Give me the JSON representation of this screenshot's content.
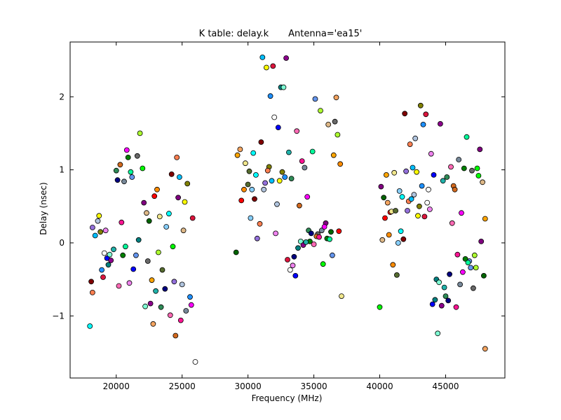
{
  "chart_data": {
    "type": "scatter",
    "title": "K table: delay.k",
    "subtitle": "Antenna='ea15'",
    "xlabel": "Frequency (MHz)",
    "ylabel": "Delay (nsec)",
    "xlim": [
      16500,
      49500
    ],
    "ylim": [
      -1.85,
      2.75
    ],
    "xticks": [
      20000,
      25000,
      30000,
      35000,
      40000,
      45000
    ],
    "yticks": [
      -1,
      0,
      1,
      2
    ],
    "ytick_labels": [
      "−1",
      "0",
      "1",
      "2"
    ],
    "grid": false,
    "legend": "none",
    "colors": [
      "#00ffff",
      "#ff00ff",
      "#ffff00",
      "#00ff00",
      "#0000ff",
      "#ff0000",
      "#000080",
      "#800000",
      "#008000",
      "#808000",
      "#800080",
      "#008080",
      "#ff8c00",
      "#ff69b4",
      "#9370db",
      "#00fa9a",
      "#1e90ff",
      "#deb887",
      "#7fffd4",
      "#f0e68c",
      "#d2691e",
      "#ff7f50",
      "#6495ed",
      "#dc143c",
      "#006400",
      "#8b008b",
      "#556b2f",
      "#ff1493",
      "#00bfff",
      "#696969",
      "#ffffff",
      "#ffa500",
      "#20b2aa",
      "#87cefa",
      "#778899",
      "#b0c4de",
      "#adff2f",
      "#ee82ee",
      "#f4a460",
      "#2e8b57"
    ],
    "points": [
      [
        18000,
        -1.14
      ],
      [
        18100,
        -0.53
      ],
      [
        18200,
        0.21
      ],
      [
        18200,
        -0.68
      ],
      [
        18400,
        0.1
      ],
      [
        18600,
        0.3
      ],
      [
        18700,
        0.37
      ],
      [
        18800,
        0.15
      ],
      [
        18900,
        -0.37
      ],
      [
        19000,
        -0.47
      ],
      [
        19100,
        -0.14
      ],
      [
        19200,
        0.17
      ],
      [
        19300,
        -0.21
      ],
      [
        19400,
        -0.3
      ],
      [
        19500,
        -0.16
      ],
      [
        19600,
        -0.24
      ],
      [
        19800,
        -0.09
      ],
      [
        20000,
        0.99
      ],
      [
        20100,
        0.86
      ],
      [
        20200,
        -0.59
      ],
      [
        20300,
        1.07
      ],
      [
        20400,
        0.28
      ],
      [
        20600,
        0.84
      ],
      [
        20800,
        1.27
      ],
      [
        20900,
        1.17
      ],
      [
        21100,
        0.97
      ],
      [
        21200,
        0.9
      ],
      [
        21600,
        1.19
      ],
      [
        21800,
        1.5
      ],
      [
        22000,
        1.02
      ],
      [
        22100,
        0.55
      ],
      [
        22300,
        0.41
      ],
      [
        22500,
        0.3
      ],
      [
        22700,
        -0.51
      ],
      [
        22800,
        -1.11
      ],
      [
        22900,
        0.64
      ],
      [
        23100,
        0.73
      ],
      [
        23300,
        0.36
      ],
      [
        23500,
        -0.37
      ],
      [
        23800,
        0.22
      ],
      [
        24000,
        0.4
      ],
      [
        24200,
        0.94
      ],
      [
        24400,
        -0.53
      ],
      [
        24600,
        1.17
      ],
      [
        24800,
        0.9
      ],
      [
        25000,
        -0.57
      ],
      [
        25200,
        0.56
      ],
      [
        25400,
        0.81
      ],
      [
        25600,
        -0.74
      ],
      [
        25800,
        0.34
      ],
      [
        26000,
        -1.63
      ],
      [
        21000,
        -0.55
      ],
      [
        21300,
        -0.36
      ],
      [
        21700,
        0.04
      ],
      [
        22200,
        -0.87
      ],
      [
        22600,
        -0.83
      ],
      [
        23000,
        -0.66
      ],
      [
        23400,
        -0.88
      ],
      [
        23700,
        -0.63
      ],
      [
        24100,
        -0.99
      ],
      [
        24500,
        -1.27
      ],
      [
        24900,
        -1.06
      ],
      [
        25300,
        -0.93
      ],
      [
        25700,
        -0.85
      ],
      [
        20500,
        -0.17
      ],
      [
        20700,
        -0.05
      ],
      [
        21500,
        -0.17
      ],
      [
        22400,
        -0.25
      ],
      [
        23200,
        -0.13
      ],
      [
        24300,
        -0.05
      ],
      [
        24700,
        0.62
      ],
      [
        25100,
        0.17
      ],
      [
        29100,
        -0.13
      ],
      [
        29200,
        1.2
      ],
      [
        29400,
        1.28
      ],
      [
        29500,
        0.58
      ],
      [
        29700,
        0.73
      ],
      [
        29800,
        1.09
      ],
      [
        30000,
        0.8
      ],
      [
        30200,
        0.34
      ],
      [
        30400,
        1.23
      ],
      [
        30500,
        0.6
      ],
      [
        30700,
        0.06
      ],
      [
        30900,
        0.26
      ],
      [
        31100,
        2.54
      ],
      [
        31200,
        0.73
      ],
      [
        31400,
        2.4
      ],
      [
        31600,
        1.04
      ],
      [
        31700,
        2.01
      ],
      [
        31900,
        2.42
      ],
      [
        32000,
        1.72
      ],
      [
        32100,
        0.13
      ],
      [
        32300,
        1.58
      ],
      [
        32500,
        2.13
      ],
      [
        32700,
        2.13
      ],
      [
        32900,
        2.53
      ],
      [
        33100,
        1.24
      ],
      [
        33300,
        0.88
      ],
      [
        33500,
        -0.19
      ],
      [
        33700,
        1.53
      ],
      [
        33900,
        0.51
      ],
      [
        34100,
        1.12
      ],
      [
        34300,
        1.03
      ],
      [
        34500,
        0.63
      ],
      [
        34700,
        0.02
      ],
      [
        34900,
        1.25
      ],
      [
        35100,
        1.97
      ],
      [
        35300,
        0.12
      ],
      [
        35500,
        1.81
      ],
      [
        35700,
        -0.29
      ],
      [
        35900,
        0.27
      ],
      [
        36100,
        1.62
      ],
      [
        36300,
        0.15
      ],
      [
        36500,
        1.2
      ],
      [
        36700,
        1.99
      ],
      [
        36900,
        0.16
      ],
      [
        37000,
        1.08
      ],
      [
        37100,
        -0.73
      ],
      [
        30100,
        0.98
      ],
      [
        30300,
        0.73
      ],
      [
        30600,
        0.93
      ],
      [
        31000,
        1.38
      ],
      [
        31300,
        0.82
      ],
      [
        31500,
        0.99
      ],
      [
        31800,
        0.85
      ],
      [
        32200,
        0.53
      ],
      [
        32400,
        0.85
      ],
      [
        32600,
        0.97
      ],
      [
        32800,
        0.9
      ],
      [
        33000,
        -0.23
      ],
      [
        33200,
        -0.37
      ],
      [
        33400,
        -0.31
      ],
      [
        33600,
        -0.45
      ],
      [
        33800,
        -0.07
      ],
      [
        34000,
        0.02
      ],
      [
        34200,
        -0.03
      ],
      [
        34400,
        0.01
      ],
      [
        34600,
        0.17
      ],
      [
        34800,
        0.13
      ],
      [
        35000,
        -0.02
      ],
      [
        35200,
        0.09
      ],
      [
        35400,
        0.08
      ],
      [
        35600,
        0.17
      ],
      [
        35800,
        0.22
      ],
      [
        36000,
        0.06
      ],
      [
        36200,
        0.05
      ],
      [
        36400,
        -0.17
      ],
      [
        36600,
        1.66
      ],
      [
        36800,
        1.48
      ],
      [
        40000,
        -0.88
      ],
      [
        40100,
        0.77
      ],
      [
        40200,
        0.04
      ],
      [
        40300,
        0.62
      ],
      [
        40500,
        0.93
      ],
      [
        40600,
        0.55
      ],
      [
        40800,
        0.42
      ],
      [
        41000,
        -0.3
      ],
      [
        41100,
        0.96
      ],
      [
        41300,
        -0.44
      ],
      [
        41500,
        0.71
      ],
      [
        41700,
        0.63
      ],
      [
        41900,
        1.77
      ],
      [
        42100,
        0.44
      ],
      [
        42300,
        1.35
      ],
      [
        42500,
        1.03
      ],
      [
        42700,
        1.43
      ],
      [
        42900,
        0.37
      ],
      [
        43100,
        1.88
      ],
      [
        43300,
        1.62
      ],
      [
        43500,
        1.76
      ],
      [
        43700,
        0.73
      ],
      [
        43900,
        1.22
      ],
      [
        44000,
        -0.84
      ],
      [
        44200,
        -0.78
      ],
      [
        44400,
        -1.24
      ],
      [
        44600,
        1.63
      ],
      [
        44800,
        0.85
      ],
      [
        45000,
        -0.73
      ],
      [
        45200,
        -0.79
      ],
      [
        45400,
        1.04
      ],
      [
        45600,
        0.78
      ],
      [
        45800,
        -0.88
      ],
      [
        46000,
        1.14
      ],
      [
        46200,
        0.41
      ],
      [
        46400,
        1.02
      ],
      [
        46600,
        1.45
      ],
      [
        46800,
        -0.25
      ],
      [
        47000,
        0.99
      ],
      [
        47200,
        -0.17
      ],
      [
        47400,
        1.02
      ],
      [
        47600,
        1.28
      ],
      [
        47800,
        0.83
      ],
      [
        47900,
        -0.45
      ],
      [
        48000,
        0.33
      ],
      [
        48000,
        -1.45
      ],
      [
        40400,
        0.34
      ],
      [
        40700,
        0.11
      ],
      [
        40900,
        0.43
      ],
      [
        41200,
        0.44
      ],
      [
        41400,
        0.0
      ],
      [
        41600,
        0.16
      ],
      [
        41800,
        0.05
      ],
      [
        42000,
        0.98
      ],
      [
        42200,
        0.57
      ],
      [
        42400,
        0.6
      ],
      [
        42600,
        0.66
      ],
      [
        42800,
        0.97
      ],
      [
        43000,
        0.5
      ],
      [
        43200,
        0.78
      ],
      [
        43400,
        0.36
      ],
      [
        43600,
        0.55
      ],
      [
        43800,
        0.46
      ],
      [
        44100,
        0.93
      ],
      [
        44300,
        -0.5
      ],
      [
        44500,
        -0.54
      ],
      [
        44700,
        -0.86
      ],
      [
        44900,
        -0.61
      ],
      [
        45100,
        0.9
      ],
      [
        45300,
        -0.43
      ],
      [
        45500,
        0.27
      ],
      [
        45700,
        0.73
      ],
      [
        45900,
        -0.16
      ],
      [
        46100,
        -0.57
      ],
      [
        46300,
        -0.4
      ],
      [
        46500,
        -0.22
      ],
      [
        46700,
        -0.27
      ],
      [
        46900,
        -0.34
      ],
      [
        47100,
        -0.62
      ],
      [
        47300,
        -0.34
      ],
      [
        47500,
        0.92
      ],
      [
        47700,
        0.02
      ]
    ]
  }
}
